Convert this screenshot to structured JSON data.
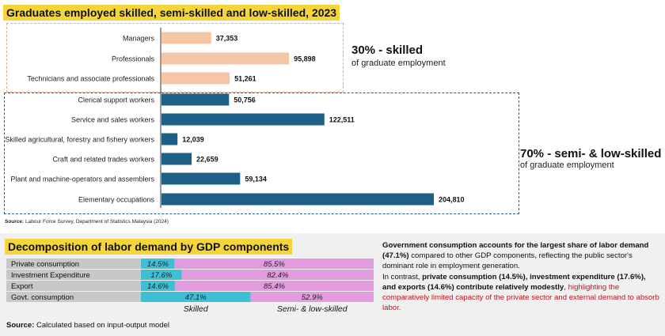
{
  "chart_data": [
    {
      "type": "bar",
      "orientation": "horizontal",
      "title": "Graduates employed skilled, semi-skilled and low-skilled, 2023",
      "categories": [
        "Managers",
        "Professionals",
        "Technicians and associate professionals",
        "Clerical support workers",
        "Service and sales workers",
        "Skilled agricultural, forestry and fishery workers",
        "Craft and related trades workers",
        "Plant and machine-operators and assemblers",
        "Elementary occupations"
      ],
      "values": [
        37353,
        95898,
        51261,
        50756,
        122511,
        12039,
        22659,
        59134,
        204810
      ],
      "value_labels": [
        "37,353",
        "95,898",
        "51,261",
        "50,756",
        "122,511",
        "12,039",
        "22,659",
        "59,134",
        "204,810"
      ],
      "groups": [
        "skilled",
        "skilled",
        "skilled",
        "semi",
        "semi",
        "semi",
        "semi",
        "semi",
        "semi"
      ],
      "colors": {
        "skilled": "#f6c5a6",
        "semi": "#1d5f85",
        "dash_skilled": "#e8a88a",
        "dash_semi": "#1d5f85"
      },
      "callouts": {
        "skilled_big": "30% - skilled",
        "skilled_small": "of graduate employment",
        "semi_big": "70% - semi- & low-skilled",
        "semi_small": "of graduate employment"
      },
      "source_label": "Source:",
      "source_text": "Labour Force Survey, Department of Statistics Malaysia (2024)"
    },
    {
      "type": "bar",
      "orientation": "horizontal-stacked-100",
      "title": "Decomposition of labor demand by GDP components",
      "categories": [
        "Private consumption",
        "Investment Expenditure",
        "Export",
        "Govt. consumption"
      ],
      "series": [
        {
          "name": "Skilled",
          "values": [
            14.5,
            17.6,
            14.6,
            47.1
          ],
          "labels": [
            "14.5%",
            "17.6%",
            "14.6%",
            "47.1%"
          ],
          "color": "#3fbfd4"
        },
        {
          "name": "Semi- & low-skilled",
          "values": [
            85.5,
            82.4,
            85.4,
            52.9
          ],
          "labels": [
            "85.5%",
            "82.4%",
            "85.4%",
            "52.9%"
          ],
          "color": "#e39be0"
        }
      ],
      "row_label_bg": "#c8c8c8",
      "source_label": "Source:",
      "source_text": "Calculated based on input-output model"
    }
  ],
  "paragraph": {
    "t1": "Government consumption accounts for the largest share of labor demand (47.1%)",
    "t2": " compared to other GDP components, reflecting the public sector's dominant role in employment generation.",
    "t3": "In contrast, ",
    "t4": "private consumption (14.5%), investment expenditure (17.6%), and exports (14.6%) contribute relatively modestly",
    "t5": ", ",
    "t6": "highlighting the comparatively limited capacity of the private sector and external demand to absorb labor."
  }
}
